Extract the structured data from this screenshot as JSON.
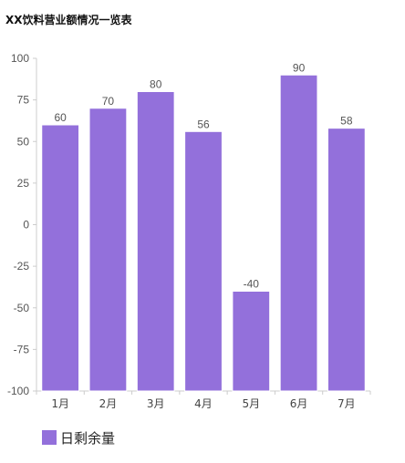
{
  "chart_data": {
    "type": "bar",
    "title": "XX饮料营业额情况一览表",
    "categories": [
      "1月",
      "2月",
      "3月",
      "4月",
      "5月",
      "6月",
      "7月"
    ],
    "series": [
      {
        "name": "日剩余量",
        "values": [
          60,
          70,
          80,
          56,
          -40,
          90,
          58
        ],
        "color": "#9370DB"
      }
    ],
    "ylim": [
      -100,
      100
    ],
    "yticks": [
      100,
      75,
      50,
      25,
      0,
      -25,
      -50,
      -75,
      -100
    ],
    "xlabel": "",
    "ylabel": "",
    "grid": false,
    "legend_position": "bottom-left",
    "data_labels": true
  }
}
